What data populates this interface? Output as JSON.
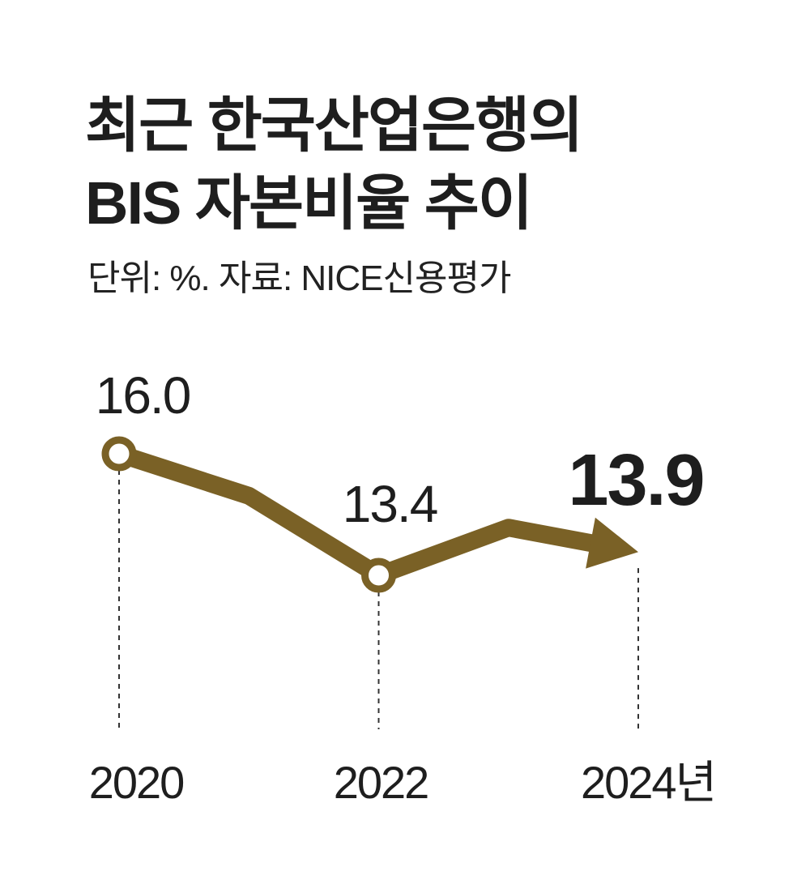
{
  "header": {
    "title_line1": "최근 한국산업은행의",
    "title_line2": "BIS 자본비율 추이",
    "subtitle": "단위: %. 자료: NICE신용평가"
  },
  "colors": {
    "line": "#7a6126",
    "text": "#1e1e1e",
    "guide": "#333333",
    "marker_fill": "#ffffff"
  },
  "chart_data": {
    "type": "line",
    "title": "최근 한국산업은행의 BIS 자본비율 추이",
    "unit": "%",
    "source": "NICE신용평가",
    "categories": [
      "2020",
      "2022",
      "2024년"
    ],
    "x": [
      2020,
      2021,
      2022,
      2023,
      2024
    ],
    "values": [
      16.0,
      15.1,
      13.4,
      13.9,
      13.9
    ],
    "labeled_points": [
      {
        "year": "2020",
        "value": 16.0,
        "label": "16.0"
      },
      {
        "year": "2022",
        "value": 13.4,
        "label": "13.4"
      },
      {
        "year": "2024년",
        "value": 13.9,
        "label": "13.9",
        "highlight": true
      }
    ],
    "markers": [
      "circle",
      "none",
      "circle",
      "none",
      "arrow"
    ],
    "grid": false,
    "legend": "none"
  }
}
